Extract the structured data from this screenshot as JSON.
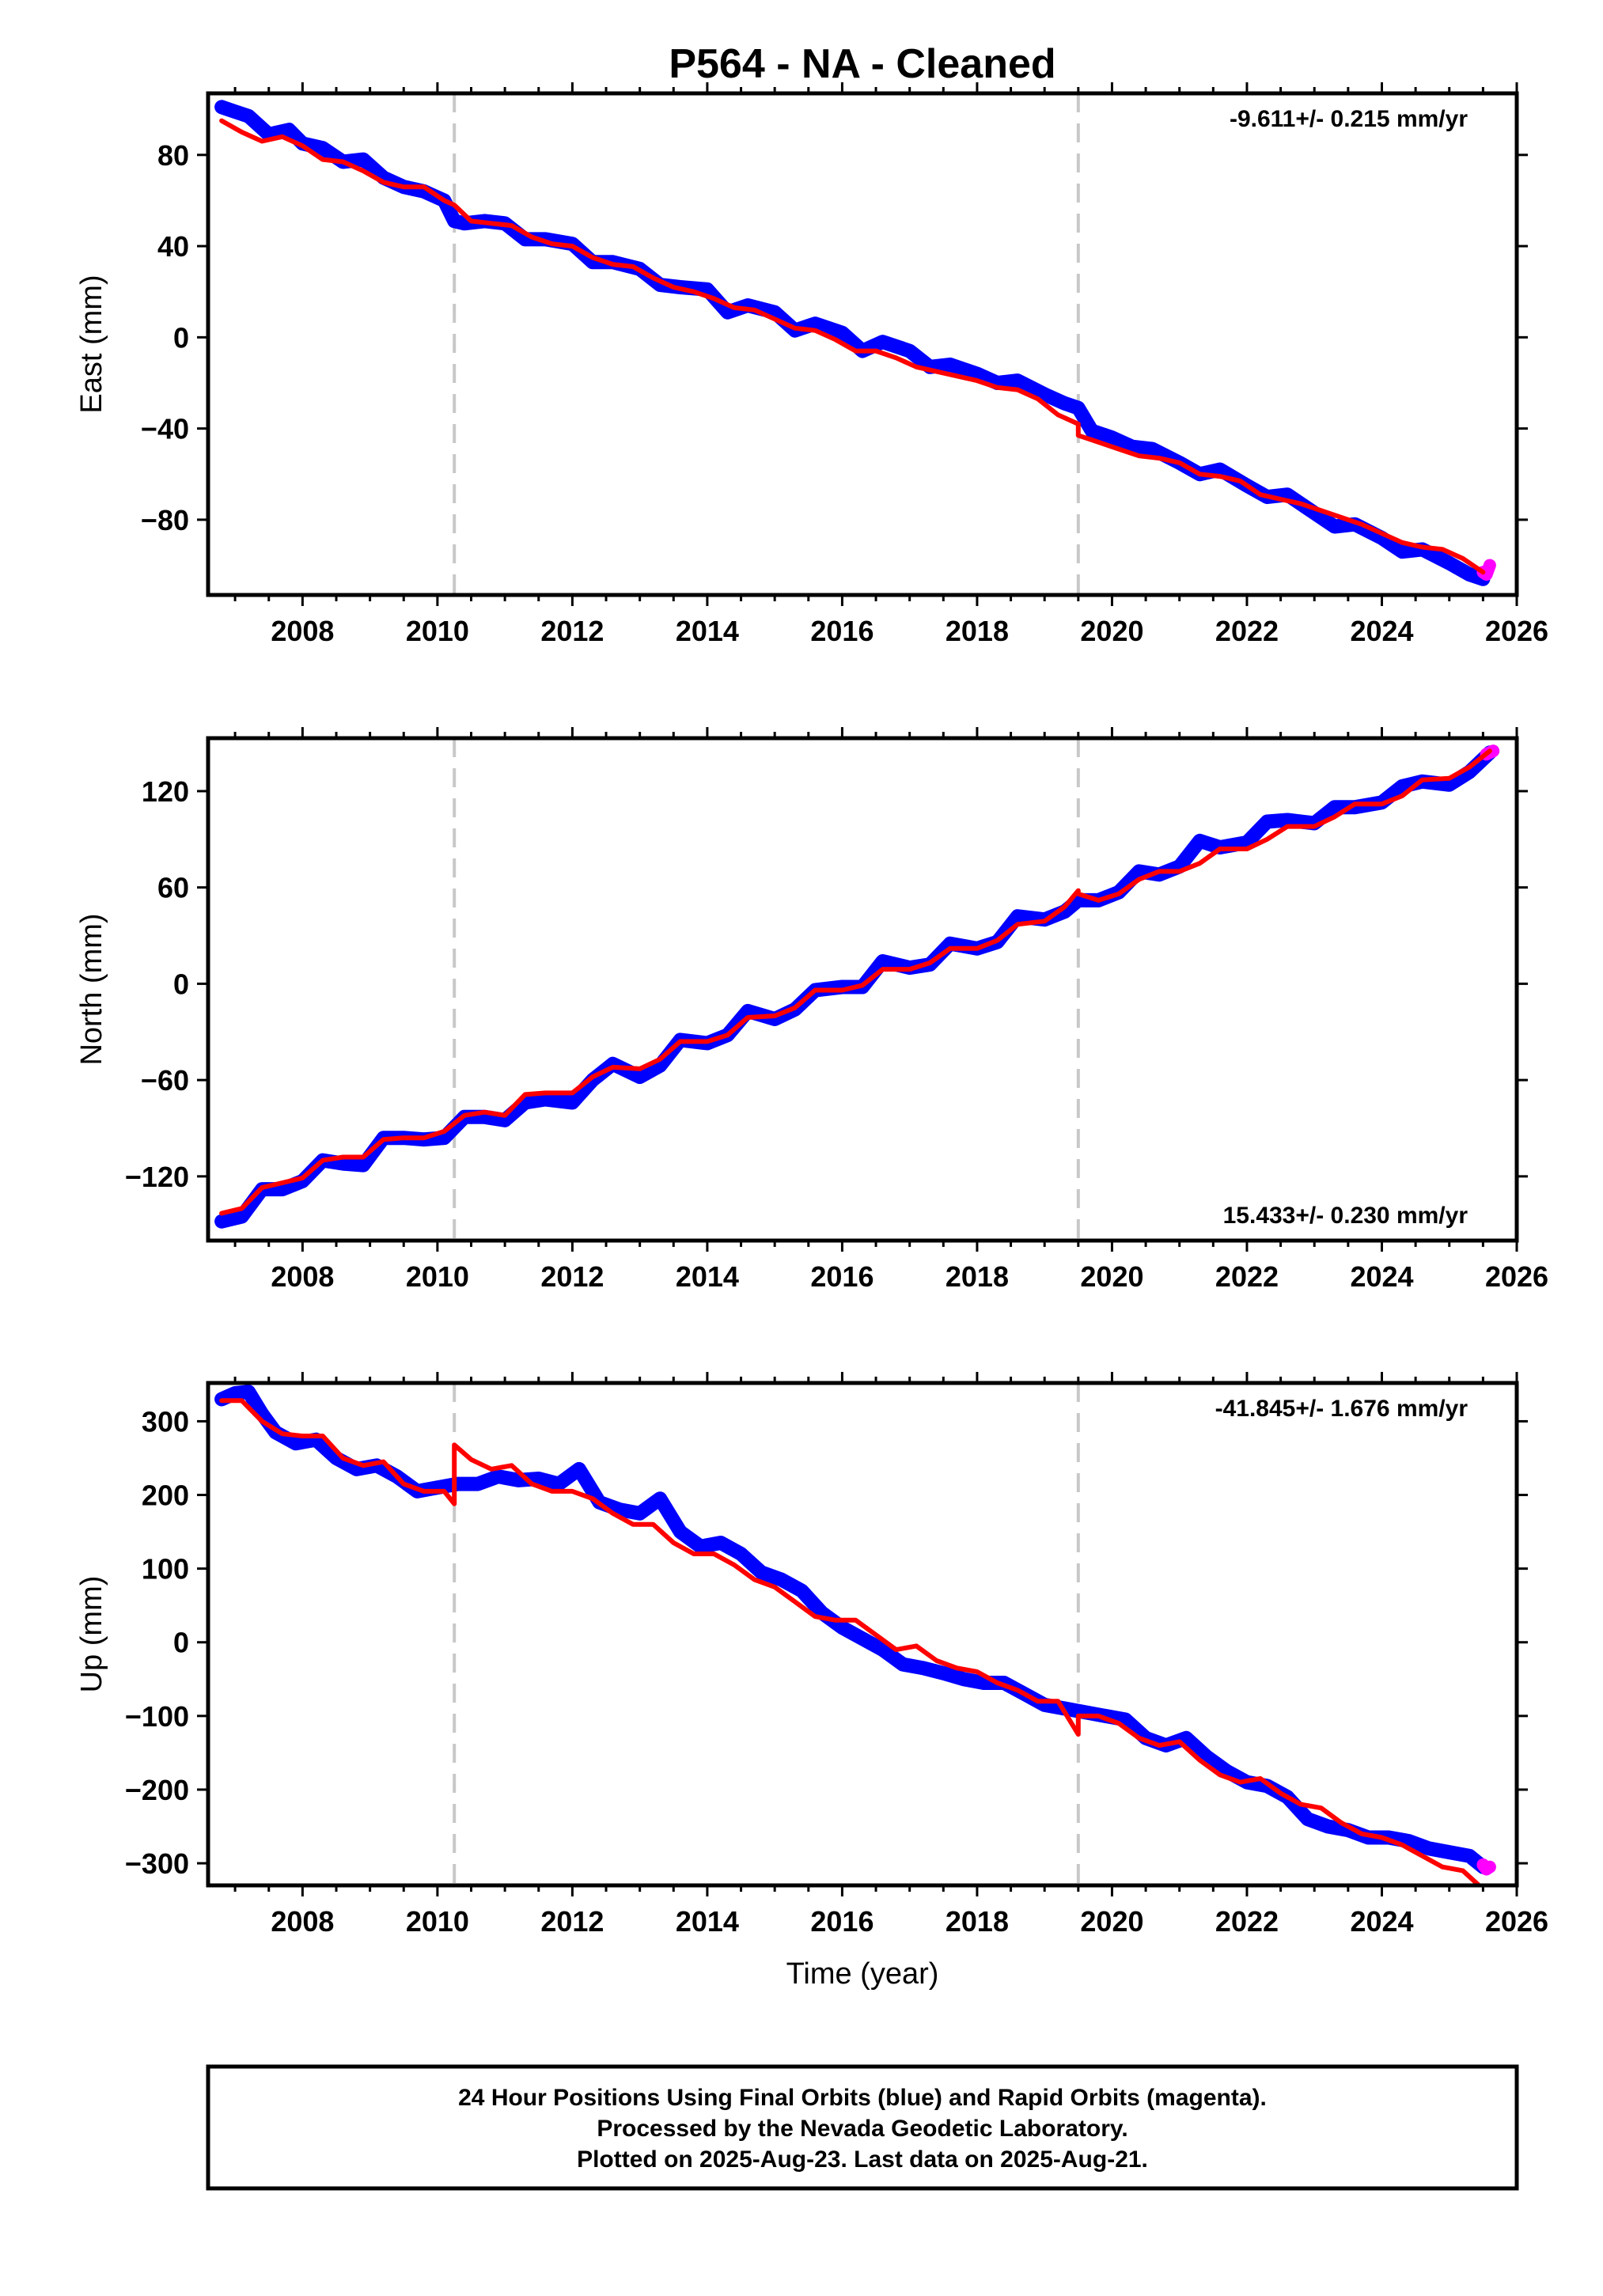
{
  "chart_data": [
    {
      "type": "line",
      "title": "P564  - NA - Cleaned",
      "ylabel": "East (mm)",
      "xlabel": "",
      "xlim": [
        2006.6,
        2026
      ],
      "ylim": [
        -113,
        107
      ],
      "x_ticks": [
        2008,
        2010,
        2012,
        2014,
        2016,
        2018,
        2020,
        2022,
        2024,
        2026
      ],
      "y_ticks": [
        80,
        40,
        0,
        -40,
        -80
      ],
      "rate_text": "-9.611+/- 0.215 mm/yr",
      "rate_position": "top-right",
      "breaks": [
        2010.25,
        2019.5
      ],
      "series": [
        {
          "color": "#0000ff",
          "x": [
            2006.8,
            2007.0,
            2007.2,
            2007.5,
            2007.8,
            2008.0,
            2008.3,
            2008.6,
            2008.9,
            2009.2,
            2009.5,
            2009.8,
            2010.1,
            2010.25,
            2010.4,
            2010.7,
            2011.0,
            2011.3,
            2011.6,
            2012.0,
            2012.3,
            2012.6,
            2013.0,
            2013.3,
            2013.6,
            2014.0,
            2014.3,
            2014.6,
            2015.0,
            2015.3,
            2015.6,
            2016.0,
            2016.3,
            2016.6,
            2017.0,
            2017.3,
            2017.6,
            2018.0,
            2018.3,
            2018.6,
            2019.0,
            2019.3,
            2019.5,
            2019.7,
            2020.0,
            2020.3,
            2020.6,
            2021.0,
            2021.3,
            2021.6,
            2022.0,
            2022.3,
            2022.6,
            2023.0,
            2023.3,
            2023.6,
            2024.0,
            2024.3,
            2024.6,
            2025.0,
            2025.3,
            2025.5
          ],
          "values": [
            101,
            99,
            97,
            89,
            91,
            85,
            83,
            77,
            78,
            70,
            66,
            64,
            60,
            51,
            50,
            51,
            50,
            43,
            43,
            41,
            33,
            33,
            30,
            23,
            22,
            21,
            11,
            14,
            11,
            3,
            6,
            2,
            -6,
            -2,
            -6,
            -13,
            -12,
            -16,
            -20,
            -19,
            -25,
            -29,
            -31,
            -41,
            -44,
            -48,
            -49,
            -55,
            -60,
            -58,
            -65,
            -70,
            -69,
            -77,
            -83,
            -82,
            -88,
            -94,
            -93,
            -99,
            -104,
            -106
          ]
        },
        {
          "color": "#ff00ff",
          "x": [
            2025.5,
            2025.55,
            2025.6
          ],
          "values": [
            -103,
            -104,
            -100
          ]
        },
        {
          "color": "#ff0000",
          "x": [
            2006.8,
            2007.1,
            2007.4,
            2007.7,
            2008.0,
            2008.3,
            2008.6,
            2008.9,
            2009.2,
            2009.5,
            2009.8,
            2010.1,
            2010.25,
            2010.25,
            2010.5,
            2010.8,
            2011.1,
            2011.4,
            2011.7,
            2012.0,
            2012.3,
            2012.6,
            2012.9,
            2013.2,
            2013.5,
            2013.8,
            2014.1,
            2014.4,
            2014.7,
            2015.0,
            2015.3,
            2015.6,
            2015.9,
            2016.2,
            2016.5,
            2016.8,
            2017.1,
            2017.4,
            2017.7,
            2018.0,
            2018.3,
            2018.6,
            2018.9,
            2019.2,
            2019.5,
            2019.5,
            2019.8,
            2020.1,
            2020.4,
            2020.7,
            2021.0,
            2021.3,
            2021.6,
            2021.9,
            2022.2,
            2022.5,
            2022.8,
            2023.1,
            2023.4,
            2023.7,
            2024.0,
            2024.3,
            2024.6,
            2024.9,
            2025.2,
            2025.5
          ],
          "values": [
            95,
            90,
            86,
            88,
            84,
            78,
            77,
            73,
            68,
            66,
            66,
            60,
            58,
            58,
            51,
            50,
            49,
            44,
            41,
            40,
            35,
            32,
            31,
            26,
            22,
            20,
            17,
            13,
            12,
            8,
            4,
            3,
            -1,
            -6,
            -6,
            -9,
            -13,
            -15,
            -17,
            -19,
            -22,
            -23,
            -27,
            -34,
            -38,
            -43,
            -46,
            -49,
            -52,
            -53,
            -55,
            -60,
            -61,
            -63,
            -69,
            -71,
            -73,
            -76,
            -79,
            -82,
            -86,
            -90,
            -92,
            -93,
            -97,
            -103
          ]
        }
      ]
    },
    {
      "type": "line",
      "title": "",
      "ylabel": "North (mm)",
      "xlabel": "",
      "xlim": [
        2006.6,
        2026
      ],
      "ylim": [
        -160,
        153
      ],
      "x_ticks": [
        2008,
        2010,
        2012,
        2014,
        2016,
        2018,
        2020,
        2022,
        2024,
        2026
      ],
      "y_ticks": [
        120,
        60,
        0,
        -60,
        -120
      ],
      "rate_text": "15.433+/- 0.230 mm/yr",
      "rate_position": "bottom-right",
      "breaks": [
        2010.25,
        2019.5
      ],
      "series": [
        {
          "color": "#0000ff",
          "x": [
            2006.8,
            2007.1,
            2007.4,
            2007.7,
            2008.0,
            2008.3,
            2008.6,
            2008.9,
            2009.2,
            2009.5,
            2009.8,
            2010.1,
            2010.4,
            2010.7,
            2011.0,
            2011.3,
            2011.6,
            2012.0,
            2012.3,
            2012.6,
            2013.0,
            2013.3,
            2013.6,
            2014.0,
            2014.3,
            2014.6,
            2015.0,
            2015.3,
            2015.6,
            2016.0,
            2016.3,
            2016.6,
            2017.0,
            2017.3,
            2017.6,
            2018.0,
            2018.3,
            2018.6,
            2019.0,
            2019.3,
            2019.5,
            2019.8,
            2020.1,
            2020.4,
            2020.7,
            2021.0,
            2021.3,
            2021.6,
            2022.0,
            2022.3,
            2022.6,
            2023.0,
            2023.3,
            2023.6,
            2024.0,
            2024.3,
            2024.6,
            2025.0,
            2025.3,
            2025.6
          ],
          "values": [
            -148,
            -145,
            -128,
            -128,
            -123,
            -110,
            -112,
            -113,
            -96,
            -96,
            -97,
            -96,
            -83,
            -83,
            -85,
            -74,
            -72,
            -74,
            -60,
            -50,
            -58,
            -51,
            -35,
            -37,
            -32,
            -17,
            -22,
            -16,
            -4,
            -2,
            -2,
            14,
            10,
            12,
            25,
            22,
            26,
            42,
            40,
            45,
            52,
            52,
            57,
            70,
            68,
            73,
            89,
            85,
            88,
            101,
            102,
            100,
            110,
            110,
            113,
            123,
            126,
            124,
            132,
            144
          ]
        },
        {
          "color": "#ff00ff",
          "x": [
            2025.55,
            2025.6,
            2025.65
          ],
          "values": [
            143,
            144,
            145
          ]
        },
        {
          "color": "#ff0000",
          "x": [
            2006.8,
            2007.1,
            2007.4,
            2007.7,
            2008.0,
            2008.3,
            2008.6,
            2008.9,
            2009.2,
            2009.5,
            2009.8,
            2010.1,
            2010.4,
            2010.7,
            2011.0,
            2011.3,
            2011.6,
            2012.0,
            2012.3,
            2012.6,
            2013.0,
            2013.3,
            2013.6,
            2014.0,
            2014.3,
            2014.6,
            2015.0,
            2015.3,
            2015.6,
            2016.0,
            2016.3,
            2016.6,
            2017.0,
            2017.3,
            2017.6,
            2018.0,
            2018.3,
            2018.6,
            2019.0,
            2019.3,
            2019.5,
            2019.5,
            2019.8,
            2020.1,
            2020.4,
            2020.7,
            2021.0,
            2021.3,
            2021.6,
            2022.0,
            2022.3,
            2022.6,
            2023.0,
            2023.3,
            2023.6,
            2024.0,
            2024.3,
            2024.6,
            2025.0,
            2025.3,
            2025.6
          ],
          "values": [
            -143,
            -140,
            -127,
            -124,
            -121,
            -110,
            -108,
            -108,
            -97,
            -96,
            -96,
            -92,
            -82,
            -80,
            -82,
            -69,
            -68,
            -68,
            -58,
            -52,
            -53,
            -47,
            -36,
            -36,
            -32,
            -21,
            -20,
            -15,
            -4,
            -4,
            -1,
            9,
            9,
            13,
            22,
            22,
            27,
            37,
            39,
            48,
            58,
            56,
            52,
            56,
            65,
            70,
            70,
            75,
            84,
            84,
            90,
            98,
            98,
            104,
            112,
            112,
            117,
            127,
            128,
            135,
            145
          ]
        }
      ]
    },
    {
      "type": "line",
      "title": "",
      "ylabel": "Up (mm)",
      "xlabel": "Time (year)",
      "xlim": [
        2006.6,
        2026
      ],
      "ylim": [
        -330,
        352
      ],
      "x_ticks": [
        2008,
        2010,
        2012,
        2014,
        2016,
        2018,
        2020,
        2022,
        2024,
        2026
      ],
      "y_ticks": [
        300,
        200,
        100,
        0,
        -100,
        -200,
        -300
      ],
      "rate_text": "-41.845+/- 1.676 mm/yr",
      "rate_position": "top-right",
      "breaks": [
        2010.25,
        2019.5
      ],
      "series": [
        {
          "color": "#0000ff",
          "x": [
            2006.8,
            2007.0,
            2007.2,
            2007.4,
            2007.6,
            2007.9,
            2008.2,
            2008.5,
            2008.8,
            2009.1,
            2009.4,
            2009.7,
            2010.0,
            2010.3,
            2010.6,
            2010.9,
            2011.2,
            2011.5,
            2011.8,
            2012.1,
            2012.4,
            2012.7,
            2013.0,
            2013.3,
            2013.6,
            2013.9,
            2014.2,
            2014.5,
            2014.8,
            2015.1,
            2015.4,
            2015.7,
            2016.0,
            2016.3,
            2016.6,
            2016.9,
            2017.2,
            2017.5,
            2017.8,
            2018.1,
            2018.4,
            2018.7,
            2019.0,
            2019.3,
            2019.6,
            2019.9,
            2020.2,
            2020.5,
            2020.8,
            2021.1,
            2021.4,
            2021.7,
            2022.0,
            2022.3,
            2022.6,
            2022.9,
            2023.2,
            2023.5,
            2023.8,
            2024.1,
            2024.4,
            2024.7,
            2025.0,
            2025.3,
            2025.5
          ],
          "values": [
            330,
            338,
            340,
            310,
            285,
            270,
            275,
            250,
            235,
            240,
            225,
            205,
            210,
            215,
            215,
            225,
            220,
            222,
            215,
            235,
            190,
            180,
            175,
            195,
            150,
            130,
            135,
            120,
            95,
            85,
            70,
            40,
            20,
            5,
            -10,
            -30,
            -35,
            -42,
            -50,
            -55,
            -55,
            -70,
            -85,
            -90,
            -95,
            -100,
            -105,
            -130,
            -140,
            -130,
            -155,
            -175,
            -190,
            -195,
            -210,
            -240,
            -250,
            -255,
            -265,
            -265,
            -270,
            -280,
            -285,
            -290,
            -305
          ]
        },
        {
          "color": "#ff00ff",
          "x": [
            2025.5,
            2025.55,
            2025.6
          ],
          "values": [
            -302,
            -308,
            -305
          ]
        },
        {
          "color": "#ff0000",
          "x": [
            2006.8,
            2007.1,
            2007.4,
            2007.7,
            2008.0,
            2008.3,
            2008.6,
            2008.9,
            2009.2,
            2009.5,
            2009.8,
            2010.1,
            2010.25,
            2010.25,
            2010.5,
            2010.8,
            2011.1,
            2011.4,
            2011.7,
            2012.0,
            2012.3,
            2012.6,
            2012.9,
            2013.2,
            2013.5,
            2013.8,
            2014.1,
            2014.4,
            2014.7,
            2015.0,
            2015.3,
            2015.6,
            2015.9,
            2016.2,
            2016.5,
            2016.8,
            2017.1,
            2017.4,
            2017.7,
            2018.0,
            2018.3,
            2018.6,
            2018.9,
            2019.2,
            2019.5,
            2019.5,
            2019.8,
            2020.1,
            2020.4,
            2020.7,
            2021.0,
            2021.3,
            2021.6,
            2021.9,
            2022.2,
            2022.5,
            2022.8,
            2023.1,
            2023.4,
            2023.7,
            2024.0,
            2024.3,
            2024.6,
            2024.9,
            2025.2,
            2025.5
          ],
          "values": [
            328,
            328,
            300,
            283,
            280,
            280,
            250,
            240,
            245,
            215,
            205,
            205,
            188,
            268,
            248,
            235,
            240,
            215,
            205,
            205,
            195,
            175,
            160,
            160,
            135,
            120,
            120,
            105,
            85,
            75,
            55,
            35,
            30,
            30,
            10,
            -10,
            -5,
            -25,
            -35,
            -40,
            -55,
            -65,
            -80,
            -80,
            -125,
            -100,
            -100,
            -110,
            -130,
            -140,
            -135,
            -160,
            -180,
            -190,
            -185,
            -205,
            -220,
            -225,
            -245,
            -260,
            -265,
            -275,
            -290,
            -305,
            -310,
            -335
          ]
        }
      ]
    }
  ],
  "footer": {
    "line1": "24 Hour Positions Using Final Orbits (blue) and Rapid Orbits (magenta).",
    "line2": "Processed by the Nevada Geodetic Laboratory.",
    "line3": "Plotted on 2025-Aug-23. Last data on 2025-Aug-21."
  }
}
